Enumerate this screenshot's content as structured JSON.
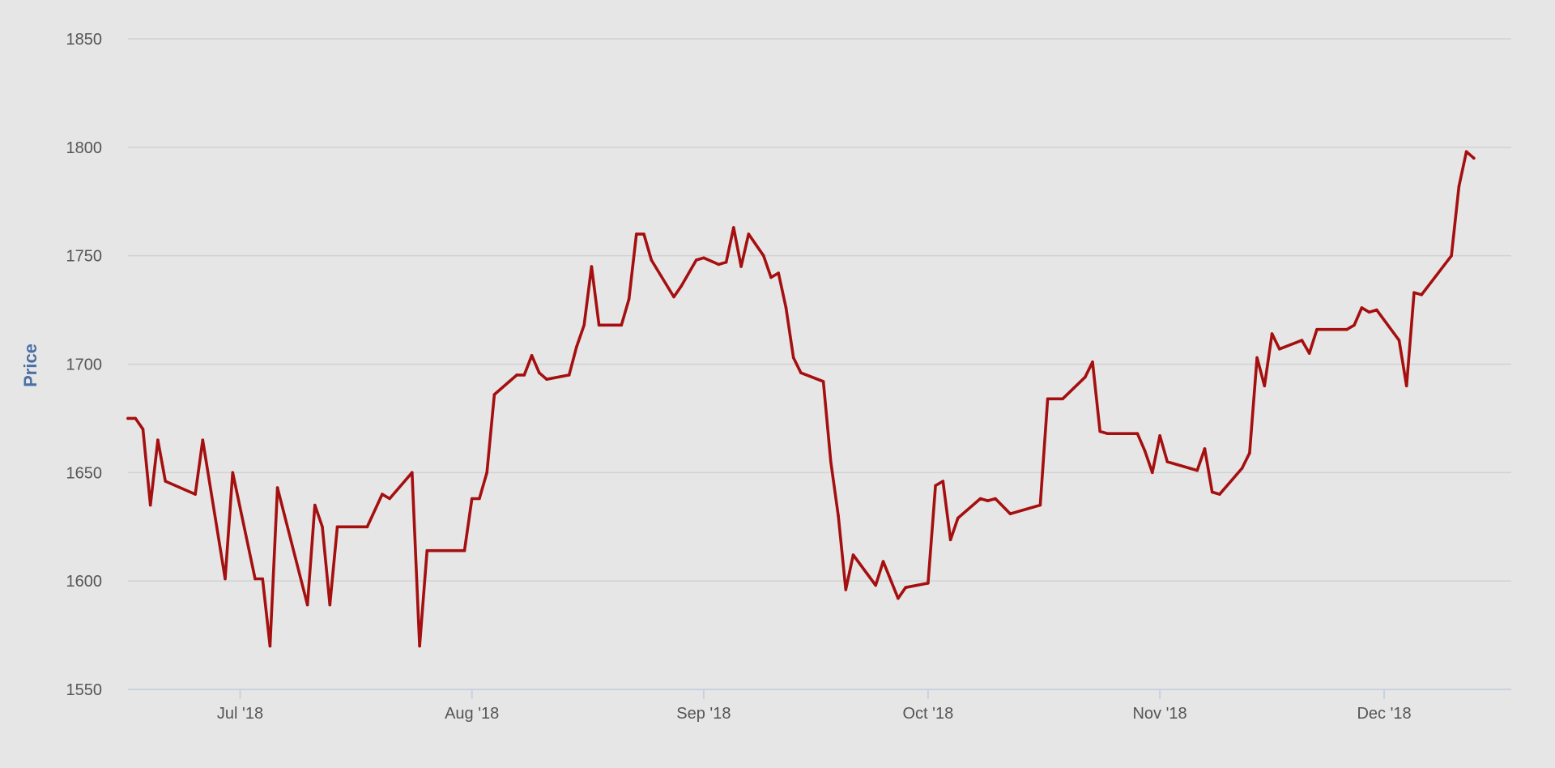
{
  "chart_data": {
    "type": "line",
    "title": "",
    "xlabel": "",
    "ylabel": "Price",
    "ylim": [
      1550,
      1850
    ],
    "y_ticks": [
      1550,
      1600,
      1650,
      1700,
      1750,
      1800,
      1850
    ],
    "xlim": [
      "2018-06-16",
      "2018-12-18"
    ],
    "x_ticks": [
      {
        "date": "2018-07-01",
        "label": "Jul '18"
      },
      {
        "date": "2018-08-01",
        "label": "Aug '18"
      },
      {
        "date": "2018-09-01",
        "label": "Sep '18"
      },
      {
        "date": "2018-10-01",
        "label": "Oct '18"
      },
      {
        "date": "2018-11-01",
        "label": "Nov '18"
      },
      {
        "date": "2018-12-01",
        "label": "Dec '18"
      }
    ],
    "grid": true,
    "legend": "none",
    "series": [
      {
        "color": "#a50f0f",
        "points": [
          [
            "2018-06-16",
            1675
          ],
          [
            "2018-06-17",
            1675
          ],
          [
            "2018-06-18",
            1670
          ],
          [
            "2018-06-19",
            1635
          ],
          [
            "2018-06-20",
            1665
          ],
          [
            "2018-06-21",
            1646
          ],
          [
            "2018-06-25",
            1640
          ],
          [
            "2018-06-26",
            1665
          ],
          [
            "2018-06-29",
            1601
          ],
          [
            "2018-06-30",
            1650
          ],
          [
            "2018-07-03",
            1601
          ],
          [
            "2018-07-04",
            1601
          ],
          [
            "2018-07-05",
            1570
          ],
          [
            "2018-07-06",
            1643
          ],
          [
            "2018-07-10",
            1589
          ],
          [
            "2018-07-11",
            1635
          ],
          [
            "2018-07-12",
            1625
          ],
          [
            "2018-07-13",
            1589
          ],
          [
            "2018-07-14",
            1625
          ],
          [
            "2018-07-18",
            1625
          ],
          [
            "2018-07-20",
            1640
          ],
          [
            "2018-07-21",
            1638
          ],
          [
            "2018-07-24",
            1650
          ],
          [
            "2018-07-25",
            1570
          ],
          [
            "2018-07-26",
            1614
          ],
          [
            "2018-07-31",
            1614
          ],
          [
            "2018-08-01",
            1638
          ],
          [
            "2018-08-02",
            1638
          ],
          [
            "2018-08-03",
            1650
          ],
          [
            "2018-08-04",
            1686
          ],
          [
            "2018-08-06",
            1692
          ],
          [
            "2018-08-07",
            1695
          ],
          [
            "2018-08-08",
            1695
          ],
          [
            "2018-08-09",
            1704
          ],
          [
            "2018-08-10",
            1696
          ],
          [
            "2018-08-11",
            1693
          ],
          [
            "2018-08-14",
            1695
          ],
          [
            "2018-08-15",
            1708
          ],
          [
            "2018-08-16",
            1718
          ],
          [
            "2018-08-17",
            1745
          ],
          [
            "2018-08-18",
            1718
          ],
          [
            "2018-08-21",
            1718
          ],
          [
            "2018-08-22",
            1730
          ],
          [
            "2018-08-23",
            1760
          ],
          [
            "2018-08-24",
            1760
          ],
          [
            "2018-08-25",
            1748
          ],
          [
            "2018-08-28",
            1731
          ],
          [
            "2018-08-29",
            1736
          ],
          [
            "2018-08-31",
            1748
          ],
          [
            "2018-09-01",
            1749
          ],
          [
            "2018-09-03",
            1746
          ],
          [
            "2018-09-04",
            1747
          ],
          [
            "2018-09-05",
            1763
          ],
          [
            "2018-09-06",
            1745
          ],
          [
            "2018-09-07",
            1760
          ],
          [
            "2018-09-09",
            1750
          ],
          [
            "2018-09-10",
            1740
          ],
          [
            "2018-09-11",
            1742
          ],
          [
            "2018-09-12",
            1726
          ],
          [
            "2018-09-13",
            1703
          ],
          [
            "2018-09-14",
            1696
          ],
          [
            "2018-09-17",
            1692
          ],
          [
            "2018-09-18",
            1655
          ],
          [
            "2018-09-19",
            1630
          ],
          [
            "2018-09-20",
            1596
          ],
          [
            "2018-09-21",
            1612
          ],
          [
            "2018-09-24",
            1598
          ],
          [
            "2018-09-25",
            1609
          ],
          [
            "2018-09-27",
            1592
          ],
          [
            "2018-09-28",
            1597
          ],
          [
            "2018-10-01",
            1599
          ],
          [
            "2018-10-02",
            1644
          ],
          [
            "2018-10-03",
            1646
          ],
          [
            "2018-10-04",
            1619
          ],
          [
            "2018-10-05",
            1629
          ],
          [
            "2018-10-08",
            1638
          ],
          [
            "2018-10-09",
            1637
          ],
          [
            "2018-10-10",
            1638
          ],
          [
            "2018-10-12",
            1631
          ],
          [
            "2018-10-15",
            1634
          ],
          [
            "2018-10-16",
            1635
          ],
          [
            "2018-10-17",
            1684
          ],
          [
            "2018-10-19",
            1684
          ],
          [
            "2018-10-22",
            1694
          ],
          [
            "2018-10-23",
            1701
          ],
          [
            "2018-10-24",
            1669
          ],
          [
            "2018-10-25",
            1668
          ],
          [
            "2018-10-29",
            1668
          ],
          [
            "2018-10-30",
            1660
          ],
          [
            "2018-10-31",
            1650
          ],
          [
            "2018-11-01",
            1667
          ],
          [
            "2018-11-02",
            1655
          ],
          [
            "2018-11-05",
            1652
          ],
          [
            "2018-11-06",
            1651
          ],
          [
            "2018-11-07",
            1661
          ],
          [
            "2018-11-08",
            1641
          ],
          [
            "2018-11-09",
            1640
          ],
          [
            "2018-11-12",
            1652
          ],
          [
            "2018-11-13",
            1659
          ],
          [
            "2018-11-14",
            1703
          ],
          [
            "2018-11-15",
            1690
          ],
          [
            "2018-11-16",
            1714
          ],
          [
            "2018-11-17",
            1707
          ],
          [
            "2018-11-20",
            1711
          ],
          [
            "2018-11-21",
            1705
          ],
          [
            "2018-11-22",
            1716
          ],
          [
            "2018-11-26",
            1716
          ],
          [
            "2018-11-27",
            1718
          ],
          [
            "2018-11-28",
            1726
          ],
          [
            "2018-11-29",
            1724
          ],
          [
            "2018-11-30",
            1725
          ],
          [
            "2018-12-03",
            1711
          ],
          [
            "2018-12-04",
            1690
          ],
          [
            "2018-12-05",
            1733
          ],
          [
            "2018-12-06",
            1732
          ],
          [
            "2018-12-10",
            1750
          ],
          [
            "2018-12-11",
            1782
          ],
          [
            "2018-12-12",
            1798
          ],
          [
            "2018-12-13",
            1795
          ]
        ]
      }
    ]
  }
}
